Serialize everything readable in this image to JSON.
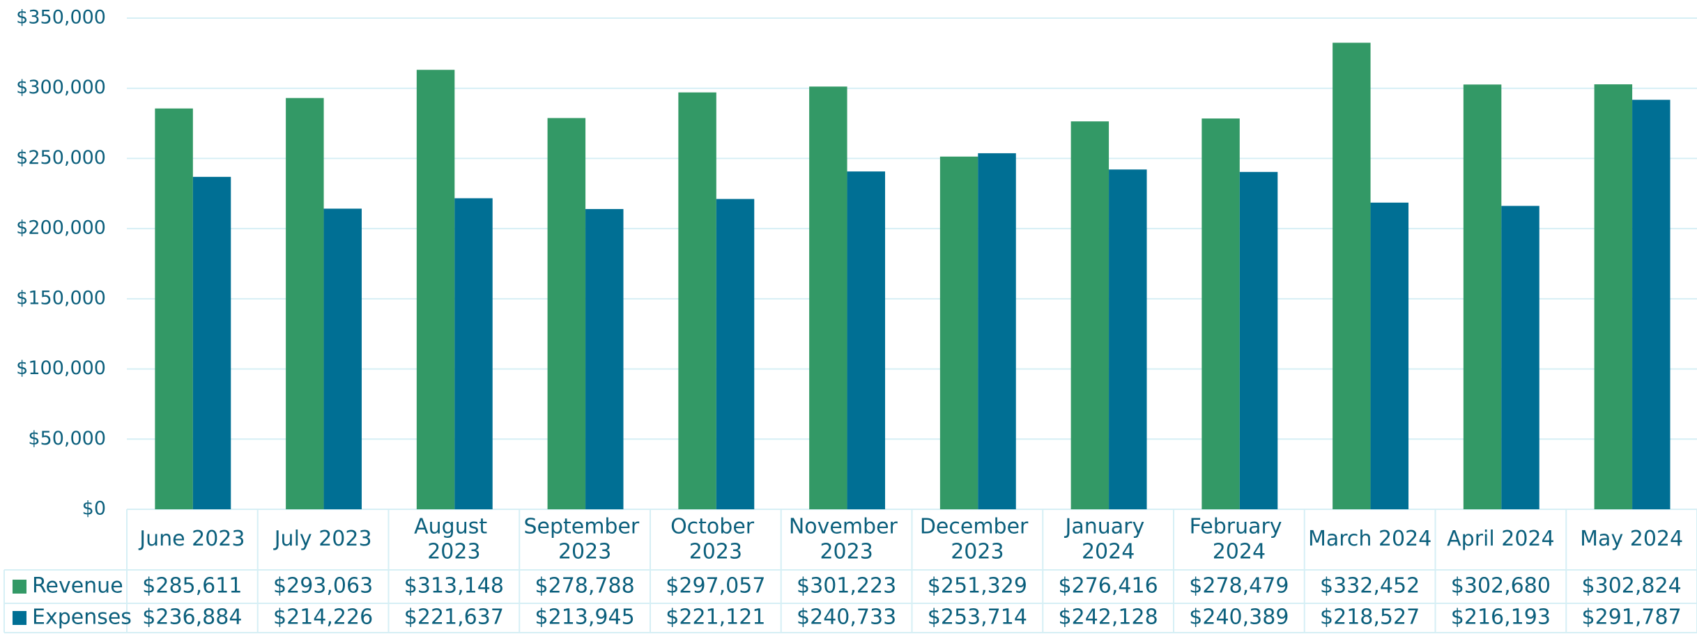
{
  "chart_data": {
    "type": "bar",
    "categories": [
      "June 2023",
      "July 2023",
      "August 2023",
      "September 2023",
      "October 2023",
      "November 2023",
      "December 2023",
      "January 2024",
      "February 2024",
      "March 2024",
      "April 2024",
      "May 2024"
    ],
    "series": [
      {
        "name": "Revenue",
        "color": "#339966",
        "values": [
          285611,
          293063,
          313148,
          278788,
          297057,
          301223,
          251329,
          276416,
          278479,
          332452,
          302680,
          302824
        ],
        "value_labels": [
          "$285,611",
          "$293,063",
          "$313,148",
          "$278,788",
          "$297,057",
          "$301,223",
          "$251,329",
          "$276,416",
          "$278,479",
          "$332,452",
          "$302,680",
          "$302,824"
        ]
      },
      {
        "name": "Expenses",
        "color": "#006f94",
        "values": [
          236884,
          214226,
          221637,
          213945,
          221121,
          240733,
          253714,
          242128,
          240389,
          218527,
          216193,
          291787
        ],
        "value_labels": [
          "$236,884",
          "$214,226",
          "$221,637",
          "$213,945",
          "$221,121",
          "$240,733",
          "$253,714",
          "$242,128",
          "$240,389",
          "$218,527",
          "$216,193",
          "$291,787"
        ]
      }
    ],
    "ylim": [
      0,
      350000
    ],
    "yticks": [
      {
        "value": 0,
        "label": "$0"
      },
      {
        "value": 50000,
        "label": "$50,000"
      },
      {
        "value": 100000,
        "label": "$100,000"
      },
      {
        "value": 150000,
        "label": "$150,000"
      },
      {
        "value": 200000,
        "label": "$200,000"
      },
      {
        "value": 250000,
        "label": "$250,000"
      },
      {
        "value": 300000,
        "label": "$300,000"
      },
      {
        "value": 350000,
        "label": "$350,000"
      }
    ],
    "grid": true
  }
}
